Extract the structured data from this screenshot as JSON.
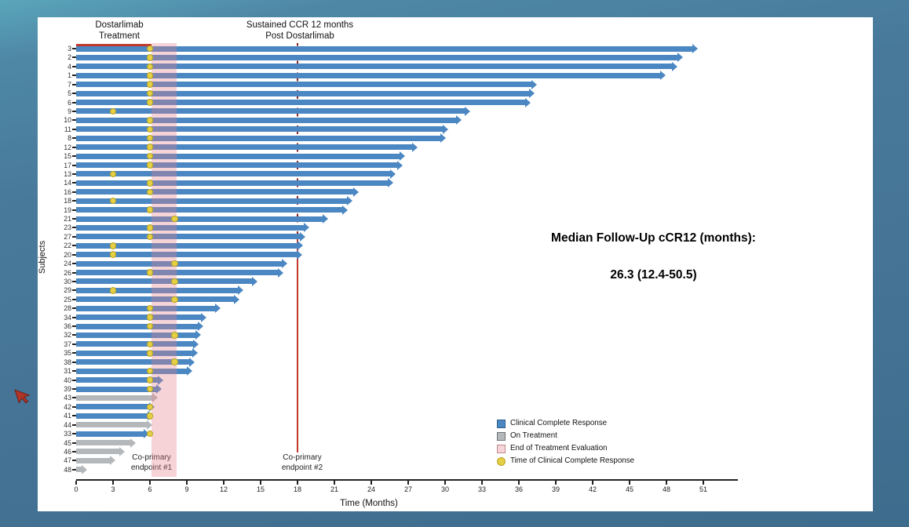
{
  "chart_data": {
    "type": "bar",
    "variant": "swimmer-plot",
    "xlabel": "Time (Months)",
    "ylabel": "Subjects",
    "x_ticks": [
      0,
      3,
      6,
      9,
      12,
      15,
      18,
      21,
      24,
      27,
      30,
      33,
      36,
      39,
      42,
      45,
      48,
      51
    ],
    "xlim": [
      0,
      54
    ],
    "subjects": [
      {
        "id": "3",
        "end": 50.5,
        "status": "ccr",
        "ccr_time": 6
      },
      {
        "id": "2",
        "end": 49.3,
        "status": "ccr",
        "ccr_time": 6
      },
      {
        "id": "4",
        "end": 48.8,
        "status": "ccr",
        "ccr_time": 6
      },
      {
        "id": "1",
        "end": 47.9,
        "status": "ccr",
        "ccr_time": 6
      },
      {
        "id": "7",
        "end": 37.4,
        "status": "ccr",
        "ccr_time": 6
      },
      {
        "id": "5",
        "end": 37.2,
        "status": "ccr",
        "ccr_time": 6
      },
      {
        "id": "6",
        "end": 36.9,
        "status": "ccr",
        "ccr_time": 6
      },
      {
        "id": "9",
        "end": 32.0,
        "status": "ccr",
        "ccr_time": 3
      },
      {
        "id": "10",
        "end": 31.3,
        "status": "ccr",
        "ccr_time": 6
      },
      {
        "id": "11",
        "end": 30.2,
        "status": "ccr",
        "ccr_time": 6
      },
      {
        "id": "8",
        "end": 30.0,
        "status": "ccr",
        "ccr_time": 6
      },
      {
        "id": "12",
        "end": 27.7,
        "status": "ccr",
        "ccr_time": 6
      },
      {
        "id": "15",
        "end": 26.7,
        "status": "ccr",
        "ccr_time": 6
      },
      {
        "id": "17",
        "end": 26.5,
        "status": "ccr",
        "ccr_time": 6
      },
      {
        "id": "13",
        "end": 25.9,
        "status": "ccr",
        "ccr_time": 3
      },
      {
        "id": "14",
        "end": 25.7,
        "status": "ccr",
        "ccr_time": 6
      },
      {
        "id": "16",
        "end": 22.9,
        "status": "ccr",
        "ccr_time": 6
      },
      {
        "id": "18",
        "end": 22.4,
        "status": "ccr",
        "ccr_time": 3
      },
      {
        "id": "19",
        "end": 22.0,
        "status": "ccr",
        "ccr_time": 6
      },
      {
        "id": "21",
        "end": 20.4,
        "status": "ccr",
        "ccr_time": 8
      },
      {
        "id": "23",
        "end": 18.9,
        "status": "ccr",
        "ccr_time": 6
      },
      {
        "id": "27",
        "end": 18.6,
        "status": "ccr",
        "ccr_time": 6
      },
      {
        "id": "22",
        "end": 18.4,
        "status": "ccr",
        "ccr_time": 3
      },
      {
        "id": "20",
        "end": 18.3,
        "status": "ccr",
        "ccr_time": 3
      },
      {
        "id": "24",
        "end": 17.1,
        "status": "ccr",
        "ccr_time": 8
      },
      {
        "id": "26",
        "end": 16.8,
        "status": "ccr",
        "ccr_time": 6
      },
      {
        "id": "30",
        "end": 14.7,
        "status": "ccr",
        "ccr_time": 8
      },
      {
        "id": "29",
        "end": 13.5,
        "status": "ccr",
        "ccr_time": 3
      },
      {
        "id": "25",
        "end": 13.2,
        "status": "ccr",
        "ccr_time": 8
      },
      {
        "id": "28",
        "end": 11.7,
        "status": "ccr",
        "ccr_time": 6
      },
      {
        "id": "34",
        "end": 10.5,
        "status": "ccr",
        "ccr_time": 6
      },
      {
        "id": "36",
        "end": 10.3,
        "status": "ccr",
        "ccr_time": 6
      },
      {
        "id": "32",
        "end": 10.1,
        "status": "ccr",
        "ccr_time": 8
      },
      {
        "id": "37",
        "end": 9.9,
        "status": "ccr",
        "ccr_time": 6
      },
      {
        "id": "35",
        "end": 9.8,
        "status": "ccr",
        "ccr_time": 6
      },
      {
        "id": "38",
        "end": 9.6,
        "status": "ccr",
        "ccr_time": 8
      },
      {
        "id": "31",
        "end": 9.4,
        "status": "ccr",
        "ccr_time": 6
      },
      {
        "id": "40",
        "end": 7.0,
        "status": "ccr",
        "ccr_time": 6
      },
      {
        "id": "39",
        "end": 6.9,
        "status": "ccr",
        "ccr_time": 6
      },
      {
        "id": "43",
        "end": 6.6,
        "status": "on_treatment",
        "ccr_time": null
      },
      {
        "id": "42",
        "end": 6.3,
        "status": "ccr",
        "ccr_time": 6
      },
      {
        "id": "41",
        "end": 6.2,
        "status": "ccr",
        "ccr_time": 6
      },
      {
        "id": "44",
        "end": 6.1,
        "status": "on_treatment",
        "ccr_time": null
      },
      {
        "id": "33",
        "end": 5.9,
        "status": "ccr",
        "ccr_time": 6
      },
      {
        "id": "45",
        "end": 4.8,
        "status": "on_treatment",
        "ccr_time": null
      },
      {
        "id": "46",
        "end": 3.9,
        "status": "on_treatment",
        "ccr_time": null
      },
      {
        "id": "47",
        "end": 3.1,
        "status": "on_treatment",
        "ccr_time": null
      },
      {
        "id": "48",
        "end": 0.8,
        "status": "on_treatment",
        "ccr_time": null
      }
    ],
    "treatment_bar": {
      "start": 0,
      "end": 6.1
    },
    "eval_band": {
      "start": 6.13,
      "end": 8.2
    },
    "endpoint_line_x": 18,
    "annotations": {
      "dostarlimab": [
        "Dostarlimab",
        "Treatment"
      ],
      "sustained": [
        "Sustained CCR 12 months",
        "Post Dostarlimab"
      ],
      "endpoint1": [
        "Co-primary",
        "endpoint #1"
      ],
      "endpoint2": [
        "Co-primary",
        "endpoint #2"
      ],
      "median_line1": "Median Follow-Up cCR12 (months):",
      "median_line2": "26.3 (12.4-50.5)"
    },
    "legend": [
      {
        "swatch": "blue-square",
        "label": "Clinical Complete Response"
      },
      {
        "swatch": "gray-square",
        "label": "On Treatment"
      },
      {
        "swatch": "pink-square",
        "label": "End of Treatment Evaluation"
      },
      {
        "swatch": "yellow-dot",
        "label": "Time of Clinical Complete Response"
      }
    ],
    "colors": {
      "bar_blue": "#4b87c2",
      "bar_gray": "#b5b8ba",
      "band_pink_rgba": "rgba(225,130,140,0.35)",
      "legend_pink": "#f6d5d8",
      "line_red": "#c0392b",
      "dash_red": "#8e2420",
      "dot_yellow": "#e5cf45",
      "dot_border": "#b9a425",
      "frame_blue": "#48799b"
    }
  }
}
